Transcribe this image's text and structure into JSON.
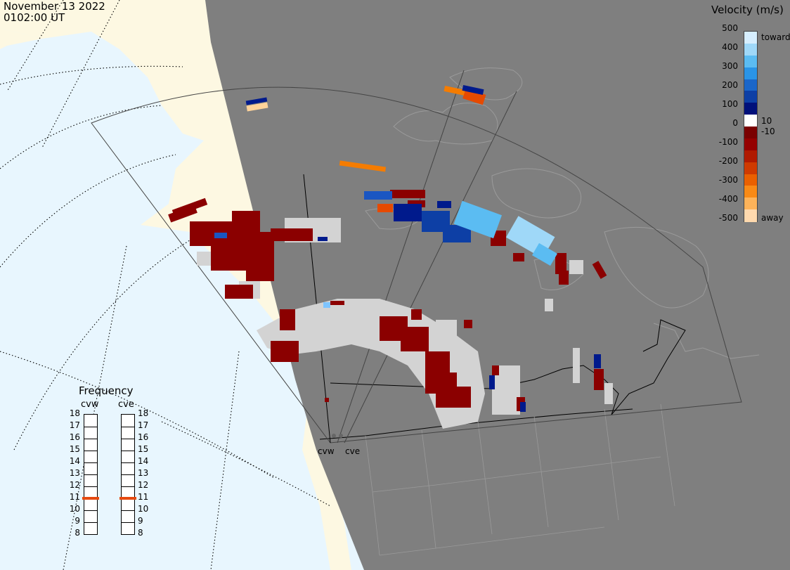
{
  "header": {
    "date": "November 13 2022",
    "time": "0102:00 UT"
  },
  "legend": {
    "title": "Velocity (m/s)",
    "ticks": [
      "500",
      "400",
      "300",
      "200",
      "100",
      "0",
      "-100",
      "-200",
      "-300",
      "-400",
      "-500"
    ],
    "toward_label": "toward",
    "away_label": "away",
    "pos_threshold": "10",
    "neg_threshold": "-10",
    "colors": [
      "#d6eefe",
      "#9fd8f8",
      "#5bbcf2",
      "#2a94e6",
      "#1a66c9",
      "#0d3fa5",
      "#00107a",
      "#ffffff",
      "#7a0000",
      "#950000",
      "#b01a00",
      "#cf3a00",
      "#ea6000",
      "#f98a16",
      "#fdb35a",
      "#ffd9ae"
    ]
  },
  "frequency": {
    "title": "Frequency",
    "radars": [
      {
        "code": "cvw",
        "freq_mhz": 11
      },
      {
        "code": "cve",
        "freq_mhz": 11
      }
    ],
    "scale": [
      "18",
      "17",
      "16",
      "15",
      "14",
      "13",
      "12",
      "11",
      "10",
      "9",
      "8"
    ],
    "marker_color": "#e64a10"
  },
  "map": {
    "ocean_color": "#e8f6fe",
    "land_color": "#fdf8e2",
    "night_color": "#7f7f7f",
    "ground_scatter_color": "#d3d3d3",
    "radar_labels": [
      "cvw",
      "cve"
    ]
  }
}
